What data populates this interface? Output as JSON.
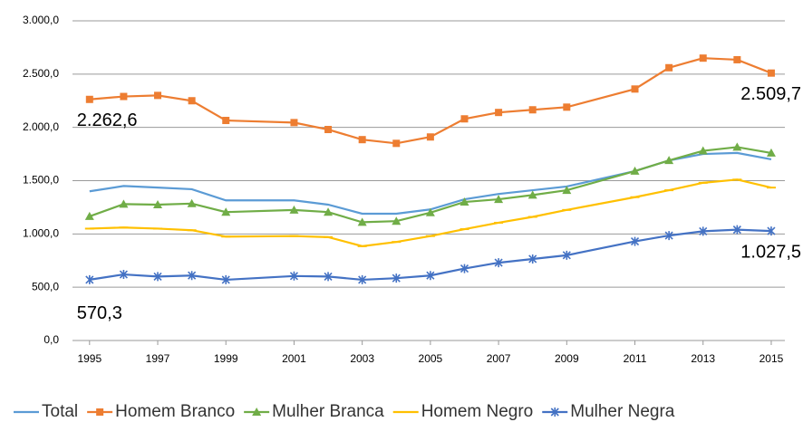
{
  "chart_data": {
    "type": "line",
    "x": [
      1995,
      1996,
      1997,
      1998,
      1999,
      2001,
      2002,
      2003,
      2004,
      2005,
      2006,
      2007,
      2008,
      2009,
      2011,
      2012,
      2013,
      2014,
      2015
    ],
    "xlim": [
      1994.5,
      2015.4
    ],
    "xticks": [
      1995,
      1997,
      1999,
      2001,
      2003,
      2005,
      2007,
      2009,
      2011,
      2013,
      2015
    ],
    "ylim": [
      0,
      3000
    ],
    "yticks": [
      {
        "value": 0,
        "label": "0,0"
      },
      {
        "value": 500,
        "label": "500,0"
      },
      {
        "value": 1000,
        "label": "1.000,0"
      },
      {
        "value": 1500,
        "label": "1.500,0"
      },
      {
        "value": 2000,
        "label": "2.000,0"
      },
      {
        "value": 2500,
        "label": "2.500,0"
      },
      {
        "value": 3000,
        "label": "3.000,0"
      }
    ],
    "grid": true,
    "legend": "bottom",
    "series": [
      {
        "name": "Total",
        "color": "#5b9bd5",
        "marker": "none",
        "values": [
          1400,
          1450,
          1435,
          1420,
          1315,
          1315,
          1275,
          1190,
          1190,
          1230,
          1325,
          1375,
          1410,
          1445,
          1590,
          1690,
          1750,
          1760,
          1700
        ]
      },
      {
        "name": "Homem Branco",
        "color": "#ed7d31",
        "marker": "square",
        "values": [
          2262.6,
          2290,
          2300,
          2250,
          2065,
          2045,
          1980,
          1885,
          1850,
          1910,
          2080,
          2140,
          2165,
          2190,
          2360,
          2560,
          2650,
          2635,
          2509.7
        ],
        "value_labels": [
          "2.262,6",
          null,
          null,
          null,
          null,
          null,
          null,
          null,
          null,
          null,
          null,
          null,
          null,
          null,
          null,
          null,
          null,
          null,
          "2.509,7"
        ]
      },
      {
        "name": "Mulher Branca",
        "color": "#70ad47",
        "marker": "triangle",
        "values": [
          1165,
          1280,
          1275,
          1285,
          1205,
          1225,
          1205,
          1110,
          1120,
          1200,
          1300,
          1325,
          1365,
          1410,
          1590,
          1690,
          1780,
          1815,
          1760
        ]
      },
      {
        "name": "Homem Negro",
        "color": "#ffc000",
        "marker": "dash",
        "values": [
          1050,
          1060,
          1050,
          1035,
          975,
          980,
          970,
          885,
          925,
          980,
          1045,
          1105,
          1160,
          1225,
          1345,
          1410,
          1480,
          1510,
          1435
        ]
      },
      {
        "name": "Mulher Negra",
        "color": "#4472c4",
        "marker": "x",
        "values": [
          570.3,
          620,
          600,
          610,
          570,
          605,
          600,
          570,
          585,
          610,
          675,
          730,
          765,
          800,
          930,
          985,
          1025,
          1040,
          1027.5
        ],
        "value_labels": [
          "570,3",
          null,
          null,
          null,
          null,
          null,
          null,
          null,
          null,
          null,
          null,
          null,
          null,
          null,
          null,
          null,
          null,
          null,
          "1.027,5"
        ]
      }
    ]
  }
}
